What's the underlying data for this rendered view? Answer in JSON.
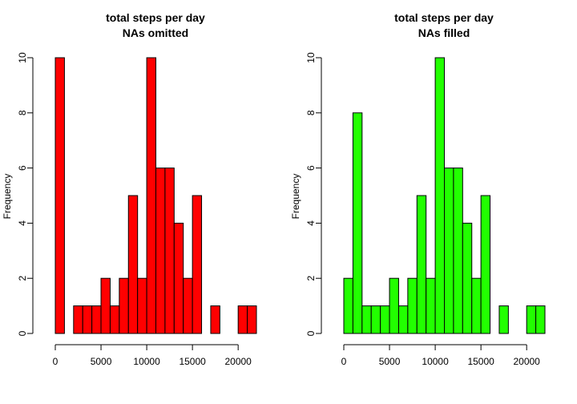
{
  "chart_data": [
    {
      "type": "bar",
      "title_line1": "total steps per day",
      "title_line2": "NAs omitted",
      "xlabel": "",
      "ylabel": "Frequency",
      "color": "#ff0000",
      "bin_width": 1000,
      "bin_start": 0,
      "xlim": [
        0,
        22000
      ],
      "ylim": [
        0,
        10
      ],
      "x_ticks": [
        0,
        5000,
        10000,
        15000,
        20000
      ],
      "y_ticks": [
        0,
        2,
        4,
        6,
        8,
        10
      ],
      "values": [
        10,
        0,
        1,
        1,
        1,
        2,
        1,
        2,
        5,
        2,
        10,
        6,
        6,
        4,
        2,
        5,
        0,
        1,
        0,
        0,
        1,
        1
      ]
    },
    {
      "type": "bar",
      "title_line1": "total steps per day",
      "title_line2": "NAs filled",
      "xlabel": "",
      "ylabel": "Frequency",
      "color": "#22ff00",
      "bin_width": 1000,
      "bin_start": 0,
      "xlim": [
        0,
        22000
      ],
      "ylim": [
        0,
        10
      ],
      "x_ticks": [
        0,
        5000,
        10000,
        15000,
        20000
      ],
      "y_ticks": [
        0,
        2,
        4,
        6,
        8,
        10
      ],
      "values": [
        2,
        8,
        1,
        1,
        1,
        2,
        1,
        2,
        5,
        2,
        10,
        6,
        6,
        4,
        2,
        5,
        0,
        1,
        0,
        0,
        1,
        1
      ]
    }
  ]
}
